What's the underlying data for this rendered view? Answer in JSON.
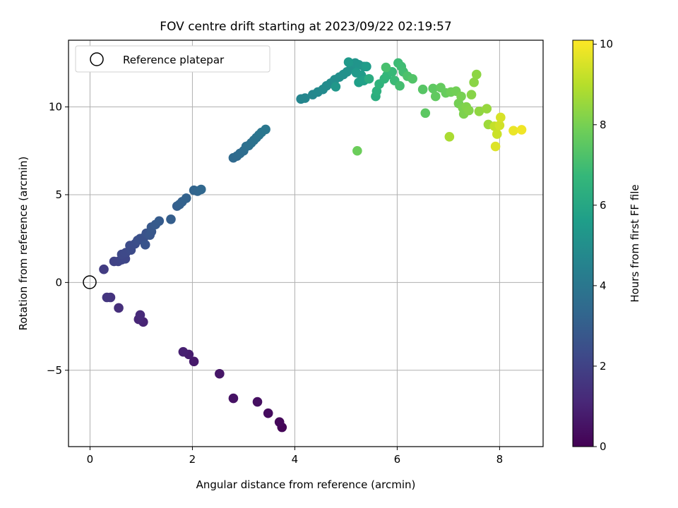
{
  "chart_data": {
    "type": "scatter",
    "title": "FOV centre drift starting at 2023/09/22 02:19:57",
    "xlabel": "Angular distance from reference (arcmin)",
    "ylabel": "Rotation from reference (arcmin)",
    "xlim": [
      -0.42,
      8.85
    ],
    "ylim": [
      -9.35,
      13.8
    ],
    "xticks": [
      0,
      2,
      4,
      6,
      8
    ],
    "yticks": [
      -5,
      0,
      5,
      10
    ],
    "ytick_labels": [
      "−5",
      "0",
      "5",
      "10"
    ],
    "grid": true,
    "legend": {
      "position": "top-left",
      "entries": [
        "Reference platepar"
      ]
    },
    "reference_point": {
      "x": 0,
      "y": 0
    },
    "colorbar": {
      "label": "Hours from first FF file",
      "range": [
        0,
        10.1
      ],
      "ticks": [
        0,
        2,
        4,
        6,
        8,
        10
      ],
      "colormap": "viridis",
      "colors": [
        "#440154",
        "#482878",
        "#3e4989",
        "#31688e",
        "#26828e",
        "#1f9e89",
        "#35b779",
        "#6ece58",
        "#b5de2b",
        "#fde725"
      ]
    },
    "series": [
      {
        "points": [
          [
            3.75,
            -8.25,
            0.1
          ],
          [
            3.7,
            -7.95,
            0.2
          ],
          [
            3.48,
            -7.45,
            0.3
          ],
          [
            3.27,
            -6.8,
            0.4
          ],
          [
            2.8,
            -6.6,
            0.5
          ],
          [
            2.53,
            -5.2,
            0.6
          ],
          [
            2.03,
            -4.5,
            0.7
          ],
          [
            1.93,
            -4.1,
            0.8
          ],
          [
            1.82,
            -3.95,
            0.9
          ],
          [
            1.04,
            -2.25,
            1.0
          ],
          [
            0.95,
            -2.1,
            1.1
          ],
          [
            0.98,
            -1.85,
            1.2
          ],
          [
            0.56,
            -1.45,
            1.35
          ],
          [
            0.4,
            -0.85,
            1.5
          ],
          [
            0.33,
            -0.85,
            1.6
          ],
          [
            0.27,
            0.75,
            1.8
          ],
          [
            0.47,
            1.2,
            2.0
          ],
          [
            0.55,
            1.2,
            2.05
          ],
          [
            0.62,
            1.3,
            2.1
          ],
          [
            0.69,
            1.35,
            2.15
          ],
          [
            0.62,
            1.6,
            2.2
          ],
          [
            0.7,
            1.7,
            2.25
          ],
          [
            0.8,
            1.85,
            2.3
          ],
          [
            0.78,
            2.1,
            2.35
          ],
          [
            0.88,
            2.2,
            2.4
          ],
          [
            0.93,
            2.4,
            2.45
          ],
          [
            0.98,
            2.5,
            2.5
          ],
          [
            1.05,
            2.55,
            2.55
          ],
          [
            1.1,
            2.8,
            2.6
          ],
          [
            1.08,
            2.15,
            2.65
          ],
          [
            1.17,
            2.7,
            2.7
          ],
          [
            1.2,
            2.9,
            2.75
          ],
          [
            1.2,
            3.15,
            2.8
          ],
          [
            1.28,
            3.3,
            2.85
          ],
          [
            1.35,
            3.5,
            2.9
          ],
          [
            1.58,
            3.6,
            3.0
          ],
          [
            1.7,
            4.35,
            3.05
          ],
          [
            1.75,
            4.45,
            3.1
          ],
          [
            1.8,
            4.6,
            3.15
          ],
          [
            1.88,
            4.8,
            3.2
          ],
          [
            2.03,
            5.25,
            3.25
          ],
          [
            2.1,
            5.2,
            3.3
          ],
          [
            2.17,
            5.3,
            3.35
          ],
          [
            2.8,
            7.1,
            3.45
          ],
          [
            2.87,
            7.2,
            3.5
          ],
          [
            2.93,
            7.35,
            3.55
          ],
          [
            3.0,
            7.5,
            3.6
          ],
          [
            3.05,
            7.75,
            3.65
          ],
          [
            3.1,
            7.8,
            3.7
          ],
          [
            3.15,
            7.95,
            3.75
          ],
          [
            3.2,
            8.1,
            3.8
          ],
          [
            3.25,
            8.25,
            3.85
          ],
          [
            3.3,
            8.4,
            3.9
          ],
          [
            3.35,
            8.55,
            3.95
          ],
          [
            3.43,
            8.72,
            4.0
          ],
          [
            4.12,
            10.45,
            4.6
          ],
          [
            4.2,
            10.5,
            4.65
          ],
          [
            4.35,
            10.7,
            4.7
          ],
          [
            4.45,
            10.85,
            4.75
          ],
          [
            4.55,
            11.0,
            4.8
          ],
          [
            4.62,
            11.2,
            4.85
          ],
          [
            4.7,
            11.35,
            4.9
          ],
          [
            4.78,
            11.55,
            4.95
          ],
          [
            4.87,
            11.7,
            5.0
          ],
          [
            4.95,
            11.85,
            5.05
          ],
          [
            5.02,
            12.0,
            5.1
          ],
          [
            5.1,
            12.2,
            5.15
          ],
          [
            5.18,
            12.5,
            5.2
          ],
          [
            5.25,
            12.4,
            5.25
          ],
          [
            5.35,
            12.3,
            5.3
          ],
          [
            4.8,
            11.15,
            5.35
          ],
          [
            5.05,
            12.55,
            5.4
          ],
          [
            5.2,
            11.95,
            5.45
          ],
          [
            5.3,
            11.8,
            5.5
          ],
          [
            5.4,
            12.3,
            5.55
          ],
          [
            5.25,
            11.4,
            5.65
          ],
          [
            5.35,
            11.5,
            5.7
          ],
          [
            5.45,
            11.6,
            6.2
          ],
          [
            5.58,
            10.6,
            6.3
          ],
          [
            5.6,
            10.9,
            6.4
          ],
          [
            5.65,
            11.3,
            6.5
          ],
          [
            5.75,
            11.6,
            6.6
          ],
          [
            5.8,
            11.8,
            6.7
          ],
          [
            5.9,
            12.0,
            6.8
          ],
          [
            5.95,
            11.5,
            6.85
          ],
          [
            6.02,
            12.5,
            6.9
          ],
          [
            6.08,
            12.3,
            6.95
          ],
          [
            6.12,
            12.0,
            7.0
          ],
          [
            6.05,
            11.2,
            7.05
          ],
          [
            5.78,
            12.25,
            7.1
          ],
          [
            6.2,
            11.75,
            7.2
          ],
          [
            6.3,
            11.6,
            7.3
          ],
          [
            6.5,
            11.0,
            7.4
          ],
          [
            6.55,
            9.65,
            7.5
          ],
          [
            6.7,
            11.05,
            7.55
          ],
          [
            6.75,
            10.6,
            7.6
          ],
          [
            6.85,
            11.1,
            7.65
          ],
          [
            6.95,
            10.8,
            7.7
          ],
          [
            5.22,
            7.5,
            7.8
          ],
          [
            7.05,
            10.85,
            7.85
          ],
          [
            7.15,
            10.9,
            7.9
          ],
          [
            7.2,
            10.2,
            7.95
          ],
          [
            7.25,
            10.6,
            8.0
          ],
          [
            7.28,
            9.95,
            8.05
          ],
          [
            7.3,
            9.6,
            8.1
          ],
          [
            7.35,
            10.0,
            8.15
          ],
          [
            7.4,
            9.8,
            8.2
          ],
          [
            7.45,
            10.7,
            8.25
          ],
          [
            7.5,
            11.4,
            8.3
          ],
          [
            7.55,
            11.85,
            8.35
          ],
          [
            7.6,
            9.75,
            8.4
          ],
          [
            7.75,
            9.9,
            8.5
          ],
          [
            7.78,
            9.0,
            8.6
          ],
          [
            7.02,
            8.3,
            8.8
          ],
          [
            7.9,
            8.9,
            9.2
          ],
          [
            7.95,
            8.45,
            9.3
          ],
          [
            8.0,
            8.95,
            9.4
          ],
          [
            8.02,
            9.4,
            9.5
          ],
          [
            7.92,
            7.75,
            9.6
          ],
          [
            8.27,
            8.65,
            9.8
          ],
          [
            8.43,
            8.7,
            9.9
          ]
        ]
      }
    ]
  }
}
